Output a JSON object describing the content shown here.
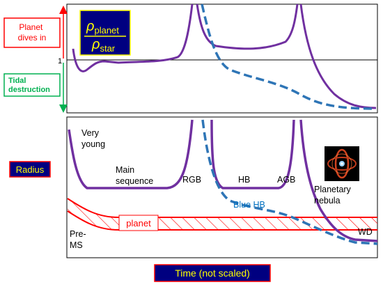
{
  "top_panel": {
    "left_labels": {
      "planet_dives_in": [
        "Planet",
        "dives in"
      ],
      "tidal_destruction": [
        "Tidal",
        "destruction"
      ],
      "one_marker": "1"
    },
    "ratio_box": {
      "numerator": "ρ",
      "numerator_sub": "planet",
      "denominator": "ρ",
      "denominator_sub": "star"
    }
  },
  "bottom_panel": {
    "y_label": "Radius",
    "x_label": "Time (not scaled)",
    "phase_labels": {
      "very_young": [
        "Very",
        "young"
      ],
      "main_sequence": [
        "Main",
        "sequence"
      ],
      "rgb": "RGB",
      "hb": "HB",
      "agb": "AGB",
      "planetary_nebula": [
        "Planetary",
        "nebula"
      ],
      "blue_hb": "Blue HB",
      "pre_ms": [
        "Pre-",
        "MS"
      ],
      "wd": "WD",
      "planet": "planet"
    }
  },
  "colors": {
    "purple_curve": "#7030a0",
    "blue_dashed": "#2e75b6",
    "red": "#ff0000",
    "green": "#00b050",
    "navy_box": "#000080",
    "yellow_text": "#ffff00",
    "blue_label": "#0070c0"
  }
}
